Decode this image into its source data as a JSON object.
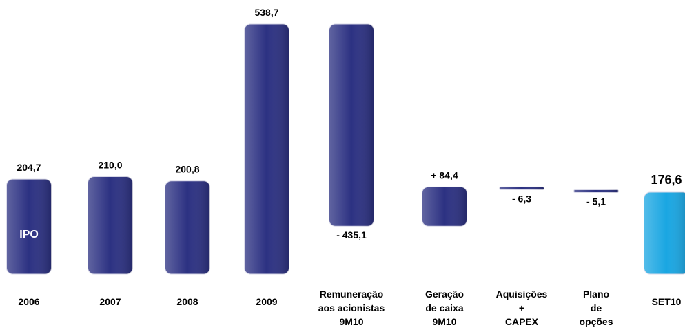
{
  "chart_data": {
    "type": "waterfall",
    "categories": [
      [
        "2006"
      ],
      [
        "2007"
      ],
      [
        "2008"
      ],
      [
        "2009"
      ],
      [
        "Remuneração",
        "aos acionistas",
        "9M10"
      ],
      [
        "Geração",
        "de caixa",
        "9M10"
      ],
      [
        "Aquisições",
        "+",
        "CAPEX"
      ],
      [
        "Plano",
        "de",
        "opções"
      ],
      [
        "SET10"
      ]
    ],
    "values": [
      204.7,
      210.0,
      200.8,
      538.7,
      -435.1,
      84.4,
      -6.3,
      -5.1,
      176.6
    ],
    "value_labels": [
      "204,7",
      "210,0",
      "200,8",
      "538,7",
      "- 435,1",
      "+ 84,4",
      "- 6,3",
      "- 5,1",
      "176,6"
    ],
    "measure": [
      "total",
      "total",
      "total",
      "total",
      "delta",
      "delta",
      "delta",
      "delta",
      "total"
    ],
    "colors": [
      "#2c3182",
      "#2c3182",
      "#2c3182",
      "#2c3182",
      "#2c3182",
      "#2c3182",
      "#2c3182",
      "#2c3182",
      "#1aa6e2"
    ],
    "annotations": [
      {
        "text": "IPO",
        "category": 0
      }
    ]
  }
}
